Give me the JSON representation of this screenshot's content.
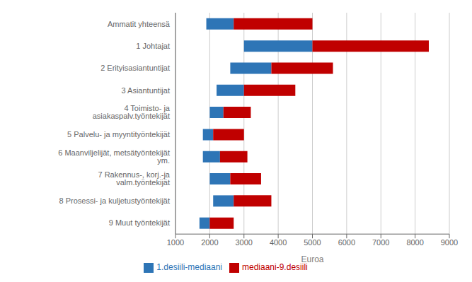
{
  "chart_data": {
    "type": "bar",
    "orientation": "horizontal",
    "x_label": "Euroa",
    "categories": [
      "Ammatit yhteensä",
      "1 Johtajat",
      "2 Erityisasiantuntijat",
      "3 Asiantuntijat",
      "4 Toimisto- ja asiakaspalv.työntekijät",
      "5 Palvelu- ja myyntityöntekijät",
      "6 Maanviljelijät, metsätyöntekijät ym.",
      "7 Rakennus-, korj.-ja valm.työntekijät",
      "8 Prosessi- ja kuljetustyöntekijät",
      "9 Muut työntekijät"
    ],
    "series": [
      {
        "name": "1.desiili-mediaani",
        "color": "#2E75B6",
        "values": [
          [
            1900,
            2700
          ],
          [
            3000,
            5000
          ],
          [
            2600,
            3800
          ],
          [
            2200,
            3000
          ],
          [
            2000,
            2400
          ],
          [
            1800,
            2100
          ],
          [
            1800,
            2300
          ],
          [
            2000,
            2600
          ],
          [
            2100,
            2700
          ],
          [
            1700,
            2000
          ]
        ]
      },
      {
        "name": "mediaani-9.desiili",
        "color": "#C00000",
        "values": [
          [
            2700,
            5000
          ],
          [
            5000,
            8400
          ],
          [
            3800,
            5600
          ],
          [
            3000,
            4500
          ],
          [
            2400,
            3200
          ],
          [
            2100,
            3000
          ],
          [
            2300,
            3100
          ],
          [
            2600,
            3500
          ],
          [
            2700,
            3800
          ],
          [
            2000,
            2700
          ]
        ]
      }
    ],
    "xlim": [
      1000,
      9000
    ],
    "xticks": [
      1000,
      2000,
      3000,
      4000,
      5000,
      6000,
      7000,
      8000,
      9000
    ],
    "grid": true,
    "legend": "bottom"
  }
}
